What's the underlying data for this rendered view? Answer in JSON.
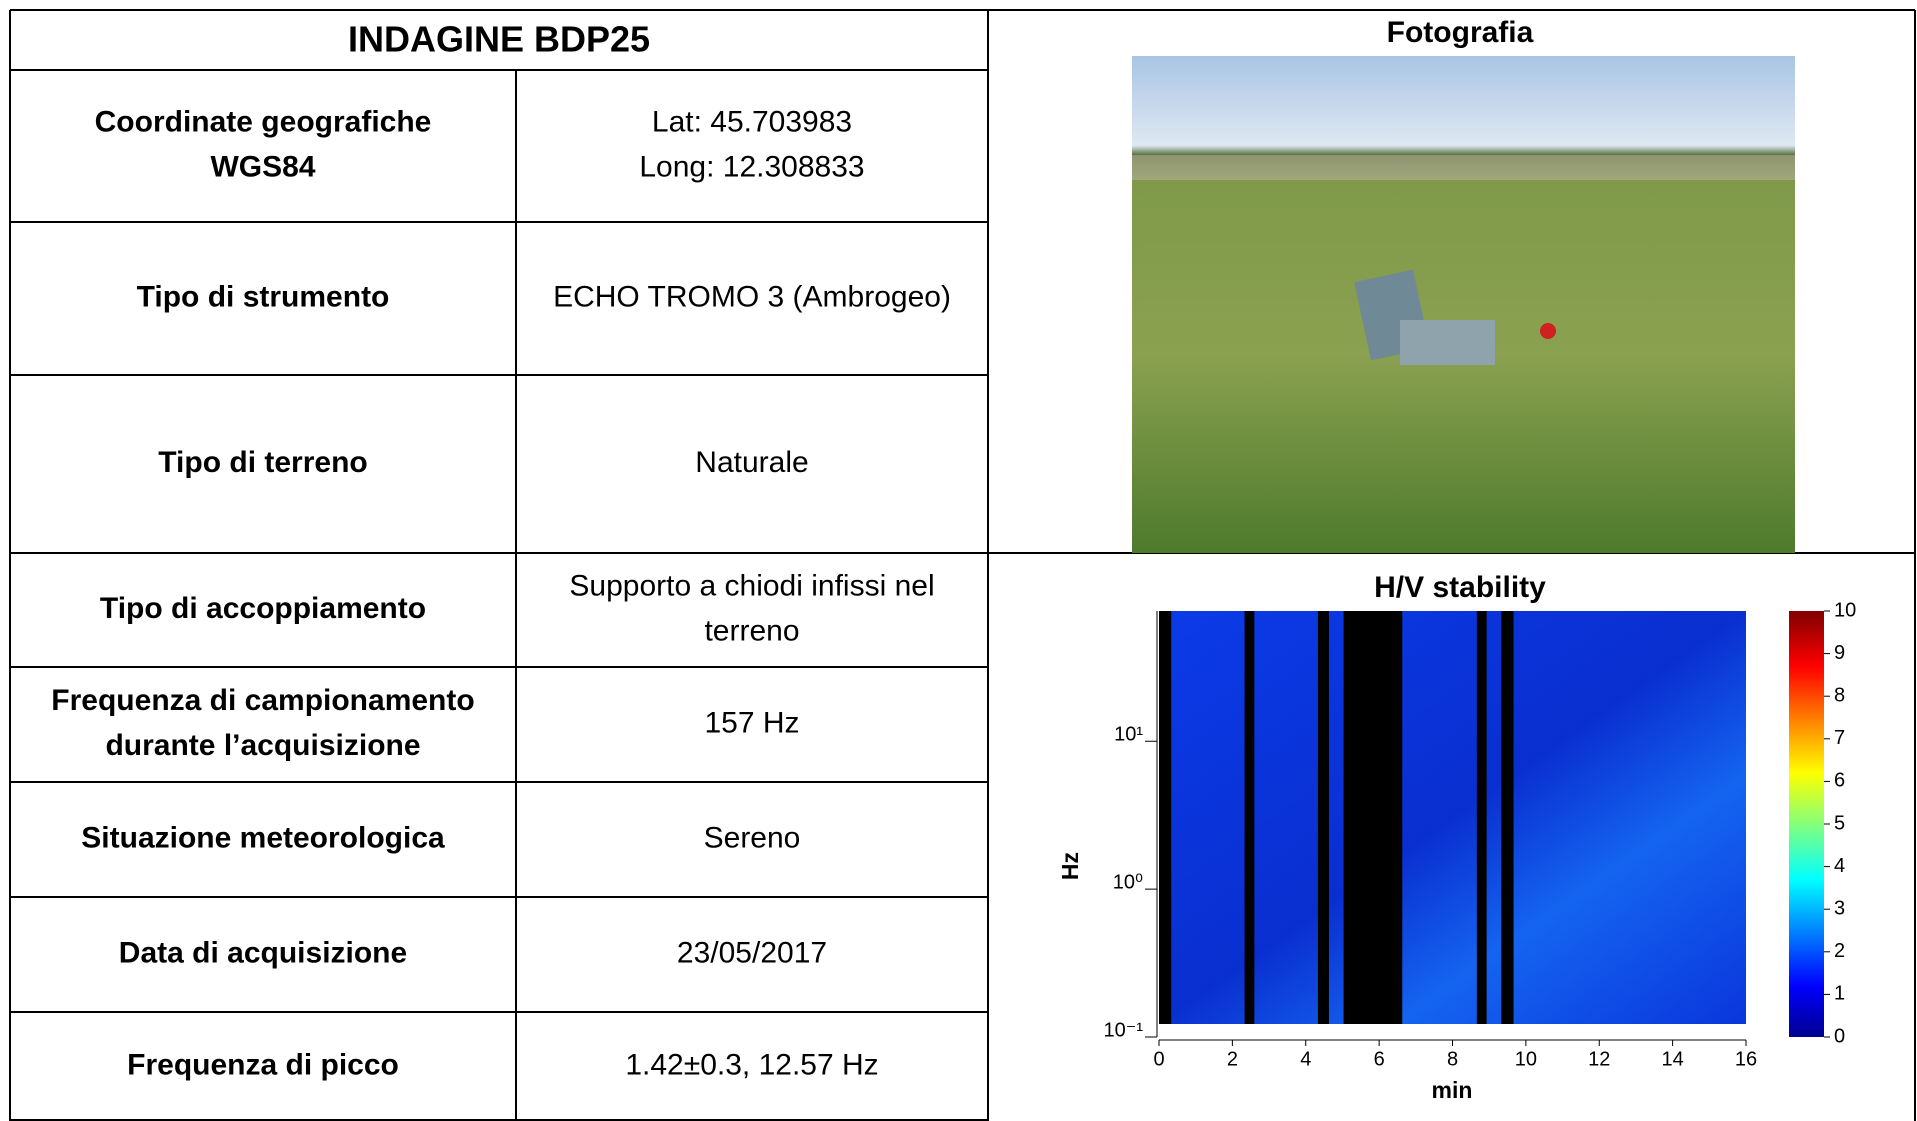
{
  "header": {
    "title": "INDAGINE BDP25"
  },
  "rows": [
    {
      "label": [
        "Coordinate geografiche",
        "WGS84"
      ],
      "value": [
        "Lat: 45.703983",
        "Long: 12.308833"
      ]
    },
    {
      "label": [
        "Tipo di strumento"
      ],
      "value": [
        "ECHO TROMO 3 (Ambrogeo)"
      ]
    },
    {
      "label": [
        "Tipo di terreno"
      ],
      "value": [
        "Naturale"
      ]
    },
    {
      "label": [
        "Tipo di accoppiamento"
      ],
      "value": [
        "Supporto a chiodi infissi nel",
        "terreno"
      ]
    },
    {
      "label": [
        "Frequenza di campionamento",
        "durante l’acquisizione"
      ],
      "value": [
        "157 Hz"
      ]
    },
    {
      "label": [
        "Situazione meteorologica"
      ],
      "value": [
        "Sereno"
      ]
    },
    {
      "label": [
        "Data di acquisizione"
      ],
      "value": [
        "23/05/2017"
      ]
    },
    {
      "label": [
        "Frequenza di picco"
      ],
      "value": [
        "1.42±0.3, 12.57 Hz"
      ]
    }
  ],
  "photo": {
    "title": "Fotografia"
  },
  "chart": {
    "title": "H/V stability",
    "x_label": "min",
    "y_label": "Hz",
    "xlim": [
      0,
      16
    ],
    "xticks": [
      0,
      2,
      4,
      6,
      8,
      10,
      12,
      14,
      16
    ],
    "ylim": [
      0.1,
      76
    ],
    "log_y": true,
    "yticks": [
      {
        "value": 0.1,
        "label": "10⁻¹"
      },
      {
        "value": 1,
        "label": "10⁰"
      },
      {
        "value": 10,
        "label": "10¹"
      }
    ],
    "clim": [
      0,
      10
    ],
    "cticks": [
      0,
      1,
      2,
      3,
      4,
      5,
      6,
      7,
      8,
      9,
      10
    ]
  }
}
